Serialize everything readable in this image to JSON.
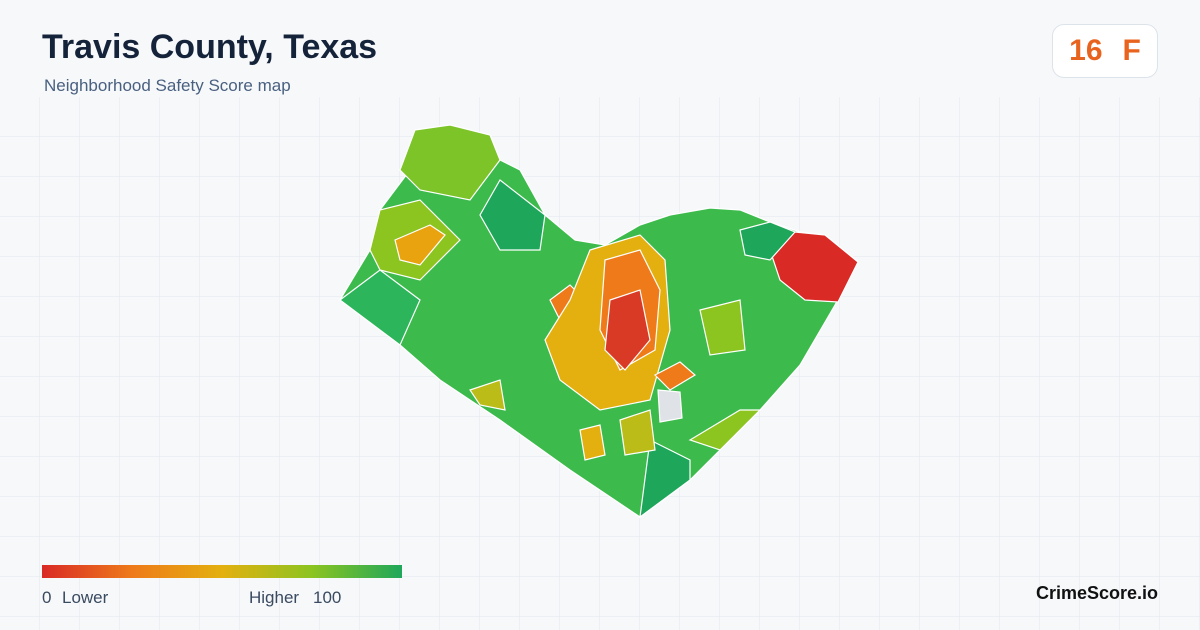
{
  "header": {
    "title": "Travis County, Texas",
    "subtitle": "Neighborhood Safety Score map"
  },
  "badge": {
    "score": 16,
    "grade": "F"
  },
  "legend": {
    "min": 0,
    "min_label": "Lower",
    "max_label": "Higher",
    "max": 100
  },
  "footer": {
    "brand": "CrimeScore.io"
  }
}
